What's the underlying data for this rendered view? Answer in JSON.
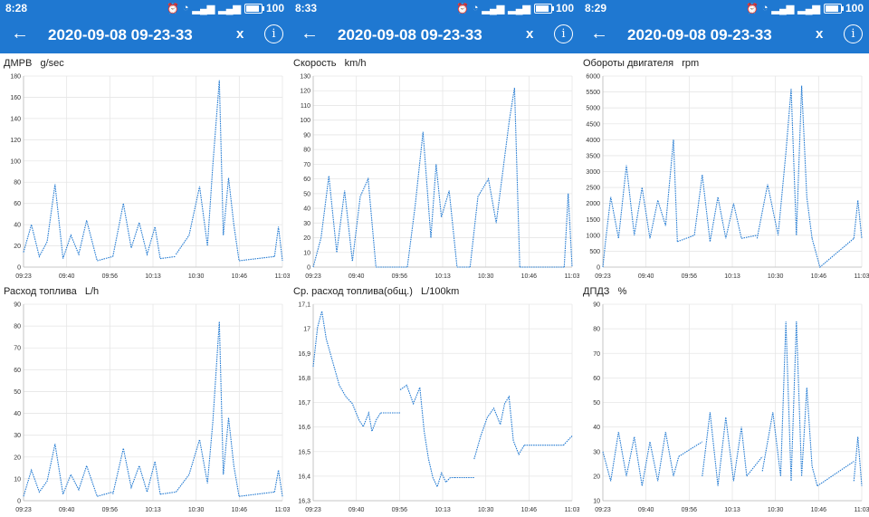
{
  "panels": [
    {
      "status": {
        "time": "8:28",
        "battery": "100",
        "sim1": "3G",
        "sim2": "3G"
      },
      "header": {
        "title": "2020-09-08 09-23-33",
        "close_label": "x",
        "info_label": "i"
      }
    },
    {
      "status": {
        "time": "8:33",
        "battery": "100",
        "sim1": "3G",
        "sim2": "3G"
      },
      "header": {
        "title": "2020-09-08 09-23-33",
        "close_label": "x",
        "info_label": "i"
      }
    },
    {
      "status": {
        "time": "8:29",
        "battery": "100",
        "sim1": "3G",
        "sim2": "3G"
      },
      "header": {
        "title": "2020-09-08 09-23-33",
        "close_label": "x",
        "info_label": "i"
      }
    }
  ],
  "colors": {
    "header": "#1f78d1",
    "series": "#1f78d1",
    "grid": "#e6e6e6"
  },
  "icons": [
    "back-arrow-icon",
    "close-icon",
    "info-icon",
    "alarm-icon",
    "wifi-icon",
    "signal-icon",
    "battery-icon"
  ],
  "chart_data": [
    {
      "type": "line",
      "title": "ДМРВ   g/sec",
      "x_ticks": [
        "09:23",
        "09:40",
        "09:56",
        "10:13",
        "10:30",
        "10:46",
        "11:03"
      ],
      "y_ticks": [
        "0",
        "20",
        "40",
        "60",
        "80",
        "100",
        "120",
        "140",
        "160",
        "180"
      ],
      "ylim": [
        0,
        180
      ],
      "segments": [
        {
          "x": [
            0,
            0.3,
            0.6,
            0.9,
            1.2,
            1.5,
            1.8,
            2.1,
            2.4,
            2.8
          ],
          "y": [
            14,
            40,
            10,
            24,
            78,
            8,
            30,
            12,
            44,
            6
          ]
        },
        {
          "x": [
            2.8,
            3.4
          ],
          "y": [
            6,
            10
          ]
        },
        {
          "x": [
            3.4,
            3.8,
            4.1,
            4.4,
            4.7,
            5.0,
            5.2
          ],
          "y": [
            10,
            60,
            18,
            42,
            12,
            38,
            8
          ]
        },
        {
          "x": [
            5.2,
            5.8
          ],
          "y": [
            8,
            10
          ]
        },
        {
          "x": [
            5.8,
            6.3,
            6.7,
            7.0,
            7.2,
            7.45,
            7.6,
            7.8,
            8.0,
            8.2
          ],
          "y": [
            12,
            30,
            76,
            20,
            96,
            176,
            30,
            84,
            40,
            6
          ]
        },
        {
          "x": [
            8.2,
            9.55
          ],
          "y": [
            6,
            10
          ]
        },
        {
          "x": [
            9.55,
            9.7,
            9.85
          ],
          "y": [
            10,
            38,
            6
          ]
        }
      ]
    },
    {
      "type": "line",
      "title": "Скорость   km/h",
      "x_ticks": [
        "09:23",
        "09:40",
        "09:56",
        "10:13",
        "10:30",
        "10:46",
        "11:03"
      ],
      "y_ticks": [
        "0",
        "10",
        "20",
        "30",
        "40",
        "50",
        "60",
        "70",
        "80",
        "90",
        "100",
        "110",
        "120",
        "130"
      ],
      "ylim": [
        0,
        130
      ],
      "segments": [
        {
          "x": [
            0,
            0.3,
            0.6,
            0.9,
            1.2,
            1.5,
            1.8,
            2.1,
            2.4
          ],
          "y": [
            0,
            20,
            62,
            10,
            52,
            4,
            48,
            60,
            0
          ]
        },
        {
          "x": [
            2.4,
            3.6
          ],
          "y": [
            0,
            0
          ]
        },
        {
          "x": [
            3.6,
            3.9,
            4.2,
            4.5,
            4.7,
            4.9,
            5.2,
            5.5
          ],
          "y": [
            0,
            42,
            92,
            20,
            70,
            34,
            52,
            0
          ]
        },
        {
          "x": [
            5.5,
            6.0
          ],
          "y": [
            0,
            0
          ]
        },
        {
          "x": [
            6.0,
            6.3,
            6.7,
            7.0,
            7.3,
            7.5,
            7.7,
            7.9
          ],
          "y": [
            0,
            48,
            60,
            30,
            72,
            100,
            122,
            0
          ]
        },
        {
          "x": [
            7.9,
            9.6
          ],
          "y": [
            0,
            0
          ]
        },
        {
          "x": [
            9.6,
            9.75,
            9.9
          ],
          "y": [
            0,
            50,
            0
          ]
        }
      ]
    },
    {
      "type": "line",
      "title": "Обороты двигателя   rpm",
      "x_ticks": [
        "09:23",
        "09:40",
        "09:56",
        "10:13",
        "10:30",
        "10:46",
        "11:03"
      ],
      "y_ticks": [
        "0",
        "500",
        "1000",
        "1500",
        "2000",
        "2500",
        "3000",
        "3500",
        "4000",
        "4500",
        "5000",
        "5500",
        "6000"
      ],
      "ylim": [
        0,
        6000
      ],
      "segments": [
        {
          "x": [
            0,
            0.1,
            0.3,
            0.6,
            0.9,
            1.2,
            1.5,
            1.8,
            2.1,
            2.4,
            2.7,
            2.85
          ],
          "y": [
            0,
            800,
            2200,
            900,
            3200,
            1000,
            2500,
            900,
            2100,
            1300,
            4000,
            800
          ]
        },
        {
          "x": [
            2.85,
            3.5
          ],
          "y": [
            800,
            1000
          ]
        },
        {
          "x": [
            3.5,
            3.8,
            4.1,
            4.4,
            4.7,
            5.0,
            5.3
          ],
          "y": [
            1000,
            2900,
            800,
            2200,
            900,
            2000,
            900
          ]
        },
        {
          "x": [
            5.3,
            5.9
          ],
          "y": [
            900,
            1000
          ]
        },
        {
          "x": [
            5.9,
            6.3,
            6.7,
            7.0,
            7.2,
            7.4,
            7.6,
            7.8,
            8.0
          ],
          "y": [
            900,
            2600,
            1000,
            3600,
            5600,
            1000,
            5700,
            2200,
            900
          ]
        },
        {
          "x": [
            8.0,
            8.3,
            9.6
          ],
          "y": [
            900,
            0,
            900
          ]
        },
        {
          "x": [
            9.6,
            9.75,
            9.9
          ],
          "y": [
            900,
            2100,
            900
          ]
        }
      ]
    },
    {
      "type": "line",
      "title": "Расход топлива   L/h",
      "x_ticks": [
        "09:23",
        "09:40",
        "09:56",
        "10:13",
        "10:30",
        "10:46",
        "11:03"
      ],
      "y_ticks": [
        "0",
        "10",
        "20",
        "30",
        "40",
        "50",
        "60",
        "70",
        "80",
        "90"
      ],
      "ylim": [
        0,
        90
      ],
      "segments": [
        {
          "x": [
            0,
            0.3,
            0.6,
            0.9,
            1.2,
            1.5,
            1.8,
            2.1,
            2.4,
            2.8
          ],
          "y": [
            2,
            14,
            4,
            9,
            26,
            3,
            12,
            5,
            16,
            2
          ]
        },
        {
          "x": [
            2.8,
            3.4
          ],
          "y": [
            2,
            4
          ]
        },
        {
          "x": [
            3.4,
            3.8,
            4.1,
            4.4,
            4.7,
            5.0,
            5.2
          ],
          "y": [
            3,
            24,
            6,
            16,
            4,
            18,
            3
          ]
        },
        {
          "x": [
            5.2,
            5.8
          ],
          "y": [
            3,
            4
          ]
        },
        {
          "x": [
            5.8,
            6.3,
            6.7,
            7.0,
            7.2,
            7.45,
            7.6,
            7.8,
            8.0,
            8.2
          ],
          "y": [
            4,
            12,
            28,
            8,
            36,
            82,
            12,
            38,
            16,
            2
          ]
        },
        {
          "x": [
            8.2,
            9.55
          ],
          "y": [
            2,
            4
          ]
        },
        {
          "x": [
            9.55,
            9.7,
            9.85
          ],
          "y": [
            4,
            14,
            2
          ]
        }
      ]
    },
    {
      "type": "line",
      "title": "Ср. расход топлива(общ.)   L/100km",
      "x_ticks": [
        "09:23",
        "09:40",
        "09:56",
        "10:13",
        "10:30",
        "10:46",
        "11:03"
      ],
      "y_ticks": [
        "16,3",
        "16,4",
        "16,5",
        "16,6",
        "16,7",
        "16,8",
        "16,9",
        "17",
        "17,1"
      ],
      "ylim": [
        16.3,
        17.15
      ],
      "segments": [
        {
          "x": [
            0,
            0.2,
            0.4,
            0.6,
            0.9,
            1.2,
            1.5,
            1.8,
            2.1,
            2.3,
            2.55,
            2.7,
            2.9,
            3.1
          ],
          "y": [
            16.88,
            17.05,
            17.12,
            17.0,
            16.9,
            16.8,
            16.75,
            16.72,
            16.65,
            16.62,
            16.68,
            16.6,
            16.65,
            16.68
          ]
        },
        {
          "x": [
            3.1,
            4.0
          ],
          "y": [
            16.68,
            16.68
          ]
        },
        {
          "x": [
            4.0,
            4.3,
            4.6,
            4.9,
            5.1,
            5.3,
            5.5,
            5.7,
            5.9,
            6.1,
            6.3,
            6.5
          ],
          "y": [
            16.78,
            16.8,
            16.72,
            16.79,
            16.6,
            16.48,
            16.4,
            16.36,
            16.42,
            16.38,
            16.4,
            16.4
          ]
        },
        {
          "x": [
            6.5,
            7.4
          ],
          "y": [
            16.4,
            16.4
          ]
        },
        {
          "x": [
            7.4,
            7.7,
            8.0,
            8.3,
            8.6,
            8.8,
            9.0,
            9.2,
            9.45,
            9.7
          ],
          "y": [
            16.48,
            16.58,
            16.66,
            16.7,
            16.63,
            16.72,
            16.75,
            16.56,
            16.5,
            16.54
          ]
        },
        {
          "x": [
            9.7,
            11.5
          ],
          "y": [
            16.54,
            16.54
          ]
        },
        {
          "x": [
            11.5,
            11.7,
            11.9
          ],
          "y": [
            16.54,
            16.56,
            16.58
          ]
        }
      ]
    },
    {
      "type": "line",
      "title": "ДПДЗ   %",
      "x_ticks": [
        "09:23",
        "09:40",
        "09:56",
        "10:13",
        "10:30",
        "10:46",
        "11:03"
      ],
      "y_ticks": [
        "10",
        "20",
        "30",
        "40",
        "50",
        "60",
        "70",
        "80",
        "90"
      ],
      "ylim": [
        10,
        90
      ],
      "segments": [
        {
          "x": [
            0,
            0.3,
            0.6,
            0.9,
            1.2,
            1.5,
            1.8,
            2.1,
            2.4,
            2.7,
            2.9
          ],
          "y": [
            30,
            18,
            38,
            20,
            36,
            16,
            34,
            18,
            38,
            20,
            28
          ]
        },
        {
          "x": [
            2.9,
            3.8
          ],
          "y": [
            28,
            34
          ]
        },
        {
          "x": [
            3.8,
            4.1,
            4.4,
            4.7,
            5.0,
            5.3,
            5.5
          ],
          "y": [
            20,
            46,
            16,
            44,
            18,
            40,
            20
          ]
        },
        {
          "x": [
            5.5,
            6.1
          ],
          "y": [
            20,
            28
          ]
        },
        {
          "x": [
            6.1,
            6.5,
            6.8,
            7.0,
            7.2,
            7.4,
            7.6,
            7.8,
            8.0,
            8.2
          ],
          "y": [
            22,
            46,
            20,
            83,
            18,
            83,
            20,
            56,
            24,
            16
          ]
        },
        {
          "x": [
            8.2,
            9.6
          ],
          "y": [
            16,
            26
          ]
        },
        {
          "x": [
            9.6,
            9.75,
            9.9
          ],
          "y": [
            18,
            36,
            16
          ]
        }
      ]
    }
  ]
}
